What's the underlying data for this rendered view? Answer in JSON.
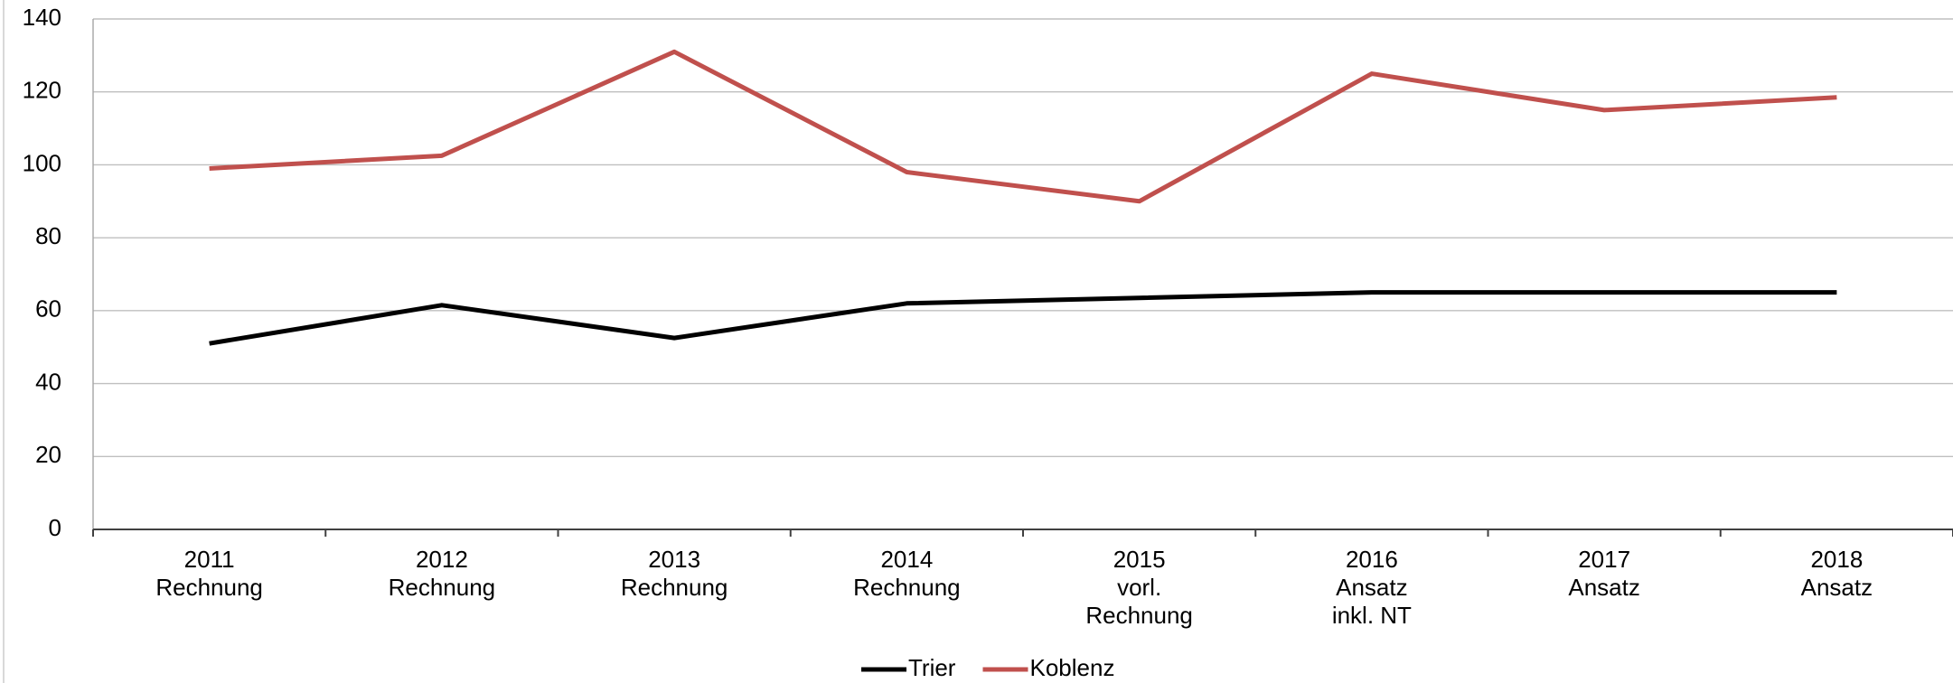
{
  "chart_data": {
    "type": "line",
    "categories": [
      [
        "2011",
        "Rechnung"
      ],
      [
        "2012",
        "Rechnung"
      ],
      [
        "2013",
        "Rechnung"
      ],
      [
        "2014",
        "Rechnung"
      ],
      [
        "2015",
        "vorl.",
        "Rechnung"
      ],
      [
        "2016",
        "Ansatz",
        "inkl. NT"
      ],
      [
        "2017",
        "Ansatz"
      ],
      [
        "2018",
        "Ansatz"
      ]
    ],
    "series": [
      {
        "name": "Trier",
        "color": "#000000",
        "values": [
          51,
          61.5,
          52.5,
          62,
          63.5,
          65,
          65,
          65
        ]
      },
      {
        "name": "Koblenz",
        "color": "#c0504d",
        "values": [
          99,
          102.5,
          131,
          98,
          90,
          125,
          115,
          118.5
        ]
      }
    ],
    "ylim": [
      0,
      140
    ],
    "yticks": [
      0,
      20,
      40,
      60,
      80,
      100,
      120,
      140
    ],
    "grid": true,
    "legend": "bottom"
  }
}
